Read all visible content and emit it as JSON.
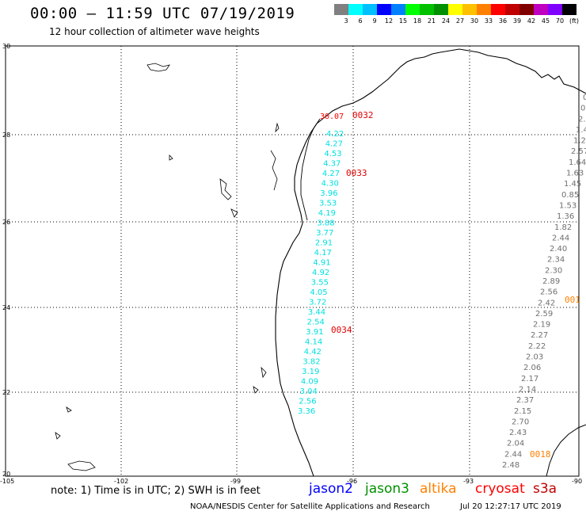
{
  "header": {
    "title": "00:00 – 11:59 UTC 07/19/2019",
    "subtitle": "12 hour collection of altimeter wave heights"
  },
  "colorbar": {
    "swatches": [
      "#808080",
      "#00ffff",
      "#00c0ff",
      "#0000ff",
      "#0080ff",
      "#00ff00",
      "#00c000",
      "#009000",
      "#ffff00",
      "#ffc000",
      "#ff8000",
      "#ff0000",
      "#c00000",
      "#800000",
      "#c000c0",
      "#8000ff",
      "#000000"
    ],
    "labels": [
      "3",
      "6",
      "9",
      "12",
      "15",
      "18",
      "21",
      "24",
      "27",
      "30",
      "33",
      "36",
      "39",
      "42",
      "45",
      "70",
      "(ft)"
    ]
  },
  "axes": {
    "lat_ticks": [
      "30",
      "28",
      "26",
      "24",
      "22",
      "20"
    ],
    "lon_ticks": [
      "-105",
      "-102",
      "-99",
      "-96",
      "-93",
      "-90"
    ]
  },
  "colors": {
    "jason2": "#0000ff",
    "jason3": "#009000",
    "altika": "#ff8000",
    "cryosat": "#ff0000",
    "s3a": "#c00000",
    "track_cyan": "#00e0e0",
    "track_gray": "#707070"
  },
  "tracks": {
    "cyan": [
      "4.22",
      "4.27",
      "4.53",
      "4.37",
      "4.27",
      "4.30",
      "3.96",
      "3.53",
      "4.19",
      "3.88",
      "3.77",
      "2.91",
      "4.17",
      "4.91",
      "4.92",
      "3.55",
      "4.05",
      "3.72",
      "3.44",
      "2.54",
      "3.91",
      "4.14",
      "4.42",
      "3.82",
      "3.19",
      "4.09",
      "3.04",
      "2.56",
      "3.36"
    ],
    "gray": [
      "0.",
      "0.",
      "2.",
      "1.4",
      "1.29",
      "2.57",
      "1.64",
      "1.63",
      "1.45",
      "0.85",
      "1.53",
      "1.36",
      "1.82",
      "2.44",
      "2.40",
      "2.34",
      "2.30",
      "2.89",
      "2.56",
      "2.42",
      "2.59",
      "2.19",
      "2.27",
      "2.22",
      "2.03",
      "2.06",
      "2.17",
      "2.14",
      "2.37",
      "2.15",
      "2.70",
      "2.43",
      "2.04",
      "2.44",
      "2.48"
    ],
    "red_top": "30.07"
  },
  "pass_labels": {
    "p0032": "0032",
    "p0033": "0033",
    "p0034": "0034",
    "p001x": "001",
    "p0018": "0018"
  },
  "footer": {
    "note": "note:  1) Time is in UTC;  2) SWH is in feet",
    "sat_jason2": "jason2",
    "sat_jason3": "jason3",
    "sat_altika": "altika",
    "sat_cryosat": "cryosat",
    "sat_s3a": "s3a",
    "credit": "NOAA/NESDIS Center for Satellite Applications and Research",
    "timestamp": "Jul 20 12:27:17 UTC 2019"
  }
}
